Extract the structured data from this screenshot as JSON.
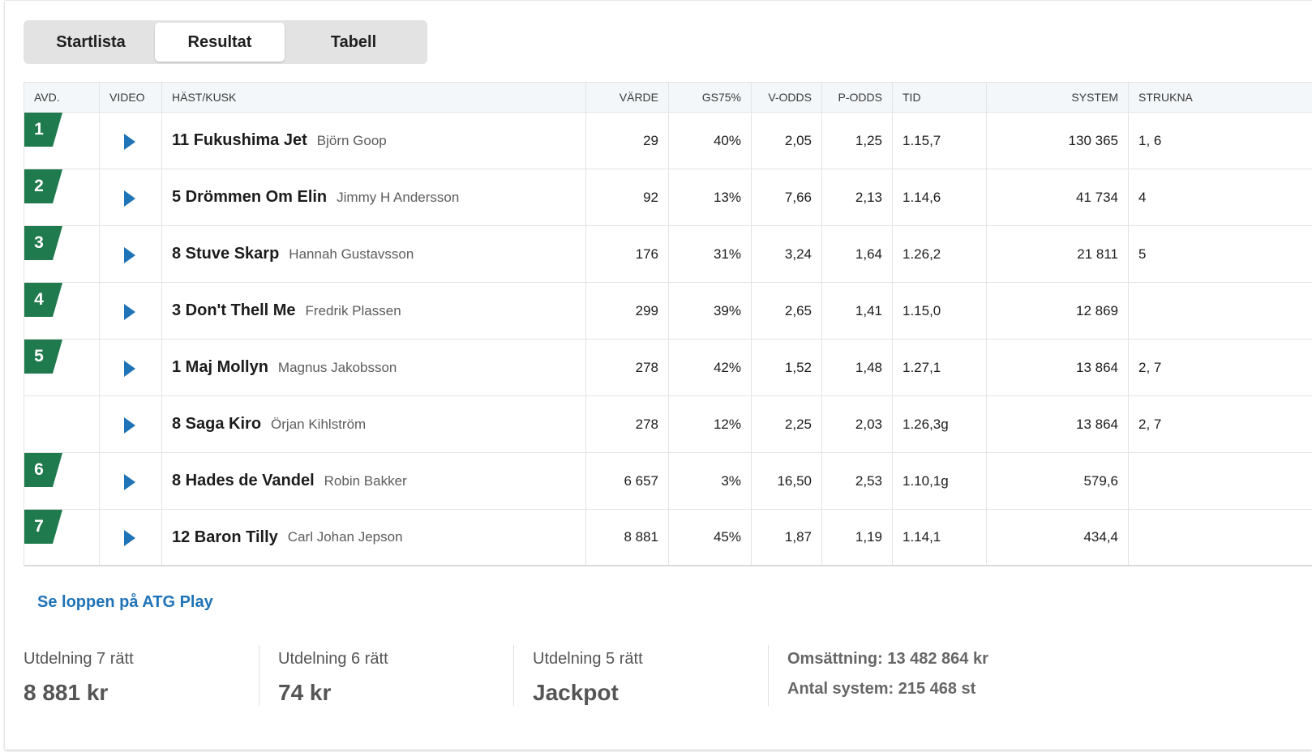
{
  "tabs": [
    {
      "label": "Startlista",
      "active": false
    },
    {
      "label": "Resultat",
      "active": true
    },
    {
      "label": "Tabell",
      "active": false
    }
  ],
  "table": {
    "headers": {
      "avd": "AVD.",
      "video": "VIDEO",
      "horse": "HÄST/KUSK",
      "varde": "VÄRDE",
      "gs75": "GS75%",
      "vodds": "V-ODDS",
      "podds": "P-ODDS",
      "tid": "TID",
      "system": "SYSTEM",
      "strukna": "STRUKNA"
    },
    "rows": [
      {
        "avd": "1",
        "horse": "11 Fukushima Jet",
        "driver": "Björn Goop",
        "varde": "29",
        "gs75": "40%",
        "vodds": "2,05",
        "podds": "1,25",
        "tid": "1.15,7",
        "system": "130 365",
        "strukna": "1, 6"
      },
      {
        "avd": "2",
        "horse": "5 Drömmen Om Elin",
        "driver": "Jimmy H Andersson",
        "varde": "92",
        "gs75": "13%",
        "vodds": "7,66",
        "podds": "2,13",
        "tid": "1.14,6",
        "system": "41 734",
        "strukna": "4"
      },
      {
        "avd": "3",
        "horse": "8 Stuve Skarp",
        "driver": "Hannah Gustavsson",
        "varde": "176",
        "gs75": "31%",
        "vodds": "3,24",
        "podds": "1,64",
        "tid": "1.26,2",
        "system": "21 811",
        "strukna": "5"
      },
      {
        "avd": "4",
        "horse": "3 Don't Thell Me",
        "driver": "Fredrik Plassen",
        "varde": "299",
        "gs75": "39%",
        "vodds": "2,65",
        "podds": "1,41",
        "tid": "1.15,0",
        "system": "12 869",
        "strukna": ""
      },
      {
        "avd": "5",
        "horse": "1 Maj Mollyn",
        "driver": "Magnus Jakobsson",
        "varde": "278",
        "gs75": "42%",
        "vodds": "1,52",
        "podds": "1,48",
        "tid": "1.27,1",
        "system": "13 864",
        "strukna": "2, 7"
      },
      {
        "avd": "",
        "horse": "8 Saga Kiro",
        "driver": "Örjan Kihlström",
        "varde": "278",
        "gs75": "12%",
        "vodds": "2,25",
        "podds": "2,03",
        "tid": "1.26,3g",
        "system": "13 864",
        "strukna": "2, 7"
      },
      {
        "avd": "6",
        "horse": "8 Hades de Vandel",
        "driver": "Robin Bakker",
        "varde": "6 657",
        "gs75": "3%",
        "vodds": "16,50",
        "podds": "2,53",
        "tid": "1.10,1g",
        "system": "579,6",
        "strukna": ""
      },
      {
        "avd": "7",
        "horse": "12 Baron Tilly",
        "driver": "Carl Johan Jepson",
        "varde": "8 881",
        "gs75": "45%",
        "vodds": "1,87",
        "podds": "1,19",
        "tid": "1.14,1",
        "system": "434,4",
        "strukna": ""
      }
    ]
  },
  "link": {
    "label": "Se loppen på ATG Play"
  },
  "payouts": [
    {
      "label": "Utdelning 7 rätt",
      "value": "8 881 kr"
    },
    {
      "label": "Utdelning 6 rätt",
      "value": "74 kr"
    },
    {
      "label": "Utdelning 5 rätt",
      "value": "Jackpot"
    }
  ],
  "summary": {
    "omsattning": "Omsättning: 13 482 864 kr",
    "antal_system": "Antal system: 215 468 st"
  },
  "colors": {
    "flag": "#1f7a4d",
    "play": "#1f73b7",
    "link": "#1f73b7",
    "tab_bg": "#e3e3e3"
  },
  "icons": {
    "video": "play-icon",
    "avd": "flag-icon"
  }
}
